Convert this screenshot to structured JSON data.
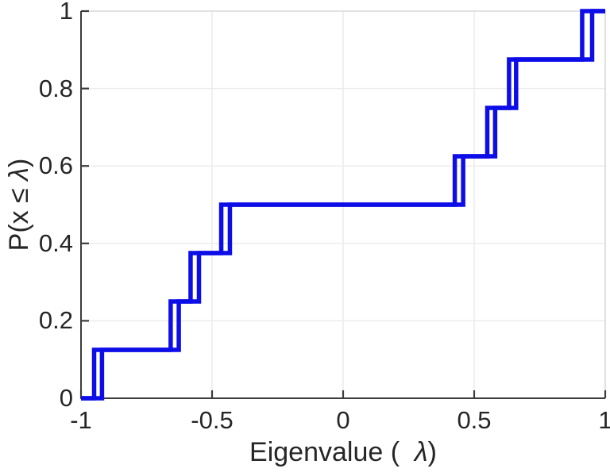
{
  "chart_data": {
    "type": "step",
    "description": "Empirical CDF (staircase) plot of eigenvalues; two nearly identical ECDF staircases overlaid in the same blue, producing doubled vertical risers at each jump",
    "title": "",
    "xlabel": "Eigenvalue (  λ)",
    "ylabel": "P(x ≤ λ)",
    "xlabel_parts": {
      "prefix": "Eigenvalue (  ",
      "symbol": "λ",
      "suffix": ")"
    },
    "ylabel_parts": {
      "prefix": "P(x ≤ ",
      "symbol": "λ",
      "suffix": ")"
    },
    "xlim": [
      -1,
      1
    ],
    "ylim": [
      0,
      1
    ],
    "x_ticks": [
      -1,
      -0.5,
      0,
      0.5,
      1
    ],
    "x_tick_labels": [
      "-1",
      "-0.5",
      "0",
      "0.5",
      "1"
    ],
    "y_ticks": [
      0,
      0.2,
      0.4,
      0.6,
      0.8,
      1
    ],
    "y_tick_labels": [
      "0",
      "0.2",
      "0.4",
      "0.6",
      "0.8",
      "1"
    ],
    "grid": true,
    "legend": null,
    "step_levels": [
      0,
      0.125,
      0.25,
      0.375,
      0.5,
      0.625,
      0.75,
      0.875,
      1
    ],
    "series": [
      {
        "name": "ecdf-series-1",
        "jump_x": [
          -0.95,
          -0.658,
          -0.582,
          -0.465,
          0.426,
          0.55,
          0.633,
          0.912
        ]
      },
      {
        "name": "ecdf-series-2",
        "jump_x": [
          -0.92,
          -0.627,
          -0.55,
          -0.432,
          0.458,
          0.58,
          0.66,
          0.95
        ]
      }
    ],
    "colors": {
      "line": "#0d0de8",
      "grid": "#ececec",
      "axis": "#3c3c3c",
      "box": "#d8d8d8",
      "text": "#262626",
      "background": "#ffffff"
    }
  }
}
